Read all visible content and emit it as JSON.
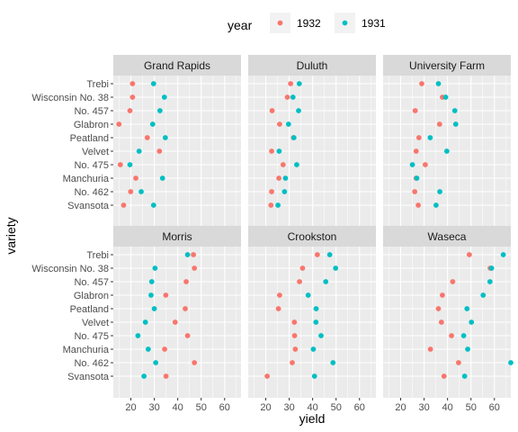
{
  "chart_data": {
    "type": "scatter",
    "xlabel": "yield",
    "ylabel": "variety",
    "xlim": [
      12.5,
      67
    ],
    "x_ticks": [
      20,
      30,
      40,
      50,
      60
    ],
    "varieties": [
      "Trebi",
      "Wisconsin No. 38",
      "No. 457",
      "Glabron",
      "Peatland",
      "Velvet",
      "No. 475",
      "Manchuria",
      "No. 462",
      "Svansota"
    ],
    "legend": {
      "title": "year",
      "position": "top"
    },
    "series": [
      {
        "name": "1932",
        "color": "#F8766D"
      },
      {
        "name": "1931",
        "color": "#00BFC4"
      }
    ],
    "panels": [
      {
        "site": "Grand Rapids",
        "1932": [
          20.7,
          20.7,
          19.6,
          14.9,
          27.0,
          32.2,
          15.5,
          22.1,
          19.9,
          16.9
        ],
        "1931": [
          29.7,
          34.3,
          32.4,
          29.3,
          34.7,
          23.5,
          19.6,
          33.5,
          24.4,
          29.7
        ]
      },
      {
        "site": "Duluth",
        "1932": [
          30.6,
          29.2,
          22.7,
          25.9,
          31.8,
          22.5,
          27.4,
          25.6,
          22.5,
          22.2
        ],
        "1931": [
          34.3,
          31.6,
          34.0,
          29.7,
          32.0,
          25.7,
          33.2,
          28.4,
          28.0,
          25.2
        ]
      },
      {
        "site": "University Farm",
        "1932": [
          29.0,
          37.8,
          26.2,
          36.6,
          27.8,
          26.6,
          30.5,
          26.6,
          26.0,
          27.5
        ],
        "1931": [
          36.1,
          39.2,
          43.1,
          43.5,
          32.6,
          39.7,
          25.0,
          26.9,
          36.7,
          35.1
        ]
      },
      {
        "site": "Morris",
        "1932": [
          46.7,
          47.1,
          43.6,
          34.9,
          43.2,
          38.9,
          44.2,
          34.4,
          47.1,
          35.0
        ],
        "1931": [
          44.2,
          30.3,
          28.9,
          28.6,
          30.0,
          26.2,
          23.0,
          27.4,
          30.6,
          25.6
        ]
      },
      {
        "site": "Crookston",
        "1932": [
          42.0,
          35.7,
          34.4,
          25.9,
          25.4,
          32.2,
          32.3,
          32.6,
          31.3,
          20.6
        ],
        "1931": [
          47.3,
          49.8,
          45.6,
          38.1,
          41.5,
          41.4,
          43.6,
          40.3,
          48.7,
          40.8
        ]
      },
      {
        "site": "Waseca",
        "1932": [
          49.3,
          58.2,
          42.2,
          37.8,
          36.1,
          37.4,
          41.7,
          32.7,
          44.7,
          38.5
        ],
        "1931": [
          63.8,
          58.8,
          58.1,
          55.2,
          48.3,
          50.2,
          46.9,
          48.6,
          67.0,
          47.3
        ]
      }
    ]
  }
}
